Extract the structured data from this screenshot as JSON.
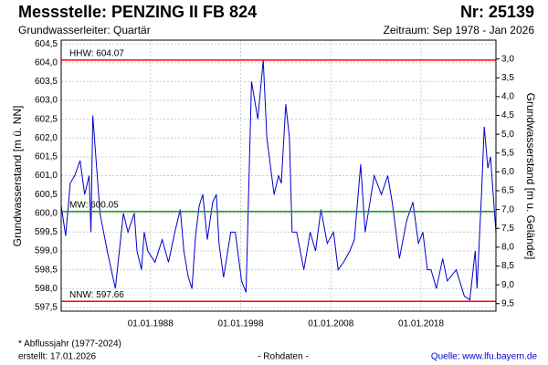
{
  "chart_data": {
    "type": "line",
    "title": "Messstelle: PENZING II FB 824",
    "number": "Nr: 25139",
    "subtitle": "Grundwasserleiter: Quartär",
    "period": "Zeitraum: Sep 1978 - Jan 2026",
    "ylabel": "Grundwasserstand [m ü. NN]",
    "y2label": "Grundwasserstand [m u. Gelände]",
    "footnote": "* Abflussjahr (1977-2024)",
    "created": "erstellt:  17.01.2026",
    "raw": "- Rohdaten -",
    "source": "Quelle:  www.lfu.bayern.de",
    "grid": true,
    "xlim": [
      1978.1,
      2026.3
    ],
    "xticks": [
      {
        "value": 1988,
        "label": "01.01.1988"
      },
      {
        "value": 1998,
        "label": "01.01.1998"
      },
      {
        "value": 2008,
        "label": "01.01.2008"
      },
      {
        "value": 2018,
        "label": "01.01.2018"
      }
    ],
    "ylim": [
      597.4,
      604.6
    ],
    "yticks": [
      {
        "value": 597.5,
        "label": "597,5"
      },
      {
        "value": 598,
        "label": "598,0"
      },
      {
        "value": 598.5,
        "label": "598,5"
      },
      {
        "value": 599,
        "label": "599,0"
      },
      {
        "value": 599.5,
        "label": "599,5"
      },
      {
        "value": 600,
        "label": "600,0"
      },
      {
        "value": 600.5,
        "label": "600,5"
      },
      {
        "value": 601,
        "label": "601,0"
      },
      {
        "value": 601.5,
        "label": "601,5"
      },
      {
        "value": 602,
        "label": "602,0"
      },
      {
        "value": 602.5,
        "label": "602,5"
      },
      {
        "value": 603,
        "label": "603,0"
      },
      {
        "value": 603.5,
        "label": "603,5"
      },
      {
        "value": 604,
        "label": "604,0"
      },
      {
        "value": 604.5,
        "label": "604,5"
      }
    ],
    "y2lim": [
      9.7,
      2.5
    ],
    "y2ticks": [
      {
        "value": 3,
        "label": "3,0"
      },
      {
        "value": 3.5,
        "label": "3,5"
      },
      {
        "value": 4,
        "label": "4,0"
      },
      {
        "value": 4.5,
        "label": "4,5"
      },
      {
        "value": 5,
        "label": "5,0"
      },
      {
        "value": 5.5,
        "label": "5,5"
      },
      {
        "value": 6,
        "label": "6,0"
      },
      {
        "value": 6.5,
        "label": "6,5"
      },
      {
        "value": 7,
        "label": "7,0"
      },
      {
        "value": 7.5,
        "label": "7,5"
      },
      {
        "value": 8,
        "label": "8,0"
      },
      {
        "value": 8.5,
        "label": "8,5"
      },
      {
        "value": 9,
        "label": "9,0"
      },
      {
        "value": 9.5,
        "label": "9,5"
      }
    ],
    "reference_lines": [
      {
        "label": "HHW: 604.07",
        "value": 604.07,
        "color": "#ff0000"
      },
      {
        "label": "MW: 600.05",
        "value": 600.05,
        "color": "#00a000"
      },
      {
        "label": "NNW: 597.66",
        "value": 597.66,
        "color": "#ff0000"
      }
    ],
    "x": [
      1978.1,
      1978.6,
      1979.1,
      1979.6,
      1980.2,
      1980.7,
      1981.2,
      1981.4,
      1981.6,
      1982.4,
      1983.2,
      1984.1,
      1985.0,
      1985.5,
      1986.2,
      1986.5,
      1987.0,
      1987.3,
      1987.7,
      1988.5,
      1989.3,
      1990.0,
      1990.7,
      1991.3,
      1991.7,
      1992.2,
      1992.6,
      1993.0,
      1993.4,
      1993.8,
      1994.3,
      1994.9,
      1995.3,
      1995.6,
      1996.1,
      1996.9,
      1997.4,
      1998.1,
      1998.6,
      1999.2,
      1999.9,
      2000.5,
      2000.9,
      2001.7,
      2002.2,
      2002.5,
      2003.0,
      2003.4,
      2003.7,
      2004.2,
      2005.0,
      2005.7,
      2006.3,
      2006.9,
      2007.6,
      2008.3,
      2008.8,
      2009.4,
      2010.1,
      2010.6,
      2011.3,
      2011.8,
      2012.8,
      2013.6,
      2014.3,
      2014.8,
      2015.6,
      2016.4,
      2017.1,
      2017.7,
      2018.2,
      2018.7,
      2019.1,
      2019.7,
      2020.4,
      2020.9,
      2021.9,
      2022.8,
      2023.4,
      2024.0,
      2024.2,
      2024.7,
      2025.0,
      2025.4,
      2025.7,
      2026.0,
      2026.3
    ],
    "series": [
      {
        "color": "#0000cc",
        "values": [
          600.2,
          599.4,
          600.8,
          601.0,
          601.4,
          600.5,
          601.0,
          599.5,
          602.6,
          600.0,
          599.0,
          598.0,
          600.0,
          599.5,
          600.0,
          599.0,
          598.5,
          599.5,
          599.0,
          598.7,
          599.3,
          598.7,
          599.5,
          600.1,
          599.0,
          598.3,
          598.0,
          599.4,
          600.2,
          600.5,
          599.3,
          600.3,
          600.5,
          599.2,
          598.3,
          599.5,
          599.5,
          598.2,
          597.9,
          603.5,
          602.5,
          604.07,
          602.0,
          600.5,
          601.0,
          600.8,
          602.9,
          602.0,
          599.5,
          599.5,
          598.5,
          599.5,
          599.0,
          600.1,
          599.2,
          599.5,
          598.5,
          598.7,
          599.0,
          599.3,
          601.3,
          599.5,
          601.0,
          600.5,
          601.0,
          600.3,
          598.8,
          599.8,
          600.3,
          599.2,
          599.5,
          598.5,
          598.5,
          598.0,
          598.8,
          598.2,
          598.5,
          597.8,
          597.7,
          599.0,
          598.0,
          600.5,
          602.3,
          601.2,
          601.5,
          600.5,
          599.5
        ]
      }
    ]
  }
}
